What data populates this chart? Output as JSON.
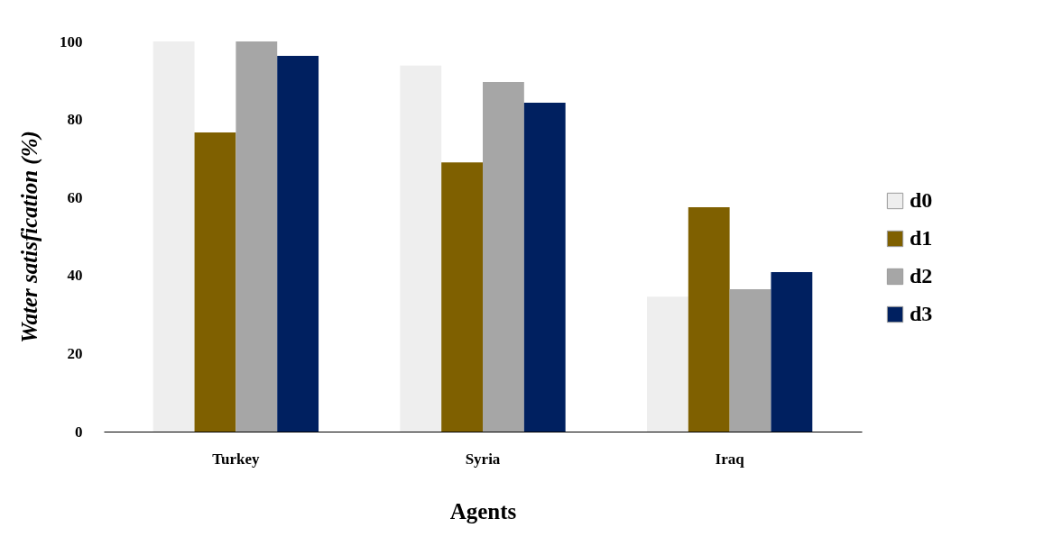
{
  "chart_data": {
    "type": "bar",
    "xlabel": "Agents",
    "ylabel": "Water satisfication (%)",
    "categories": [
      "Turkey",
      "Syria",
      "Iraq"
    ],
    "series": [
      {
        "name": "d0",
        "color": "#eeeeee",
        "values": [
          100,
          93.8,
          34.6
        ]
      },
      {
        "name": "d1",
        "color": "#7f6000",
        "values": [
          76.7,
          69,
          57.5
        ]
      },
      {
        "name": "d2",
        "color": "#a6a6a6",
        "values": [
          100,
          89.6,
          36.5
        ]
      },
      {
        "name": "d3",
        "color": "#002060",
        "values": [
          96.3,
          84.3,
          40.9
        ]
      }
    ],
    "ylim": [
      0,
      100
    ],
    "yticks": [
      0,
      20,
      40,
      60,
      80,
      100
    ],
    "grid": false,
    "legend": "right"
  }
}
